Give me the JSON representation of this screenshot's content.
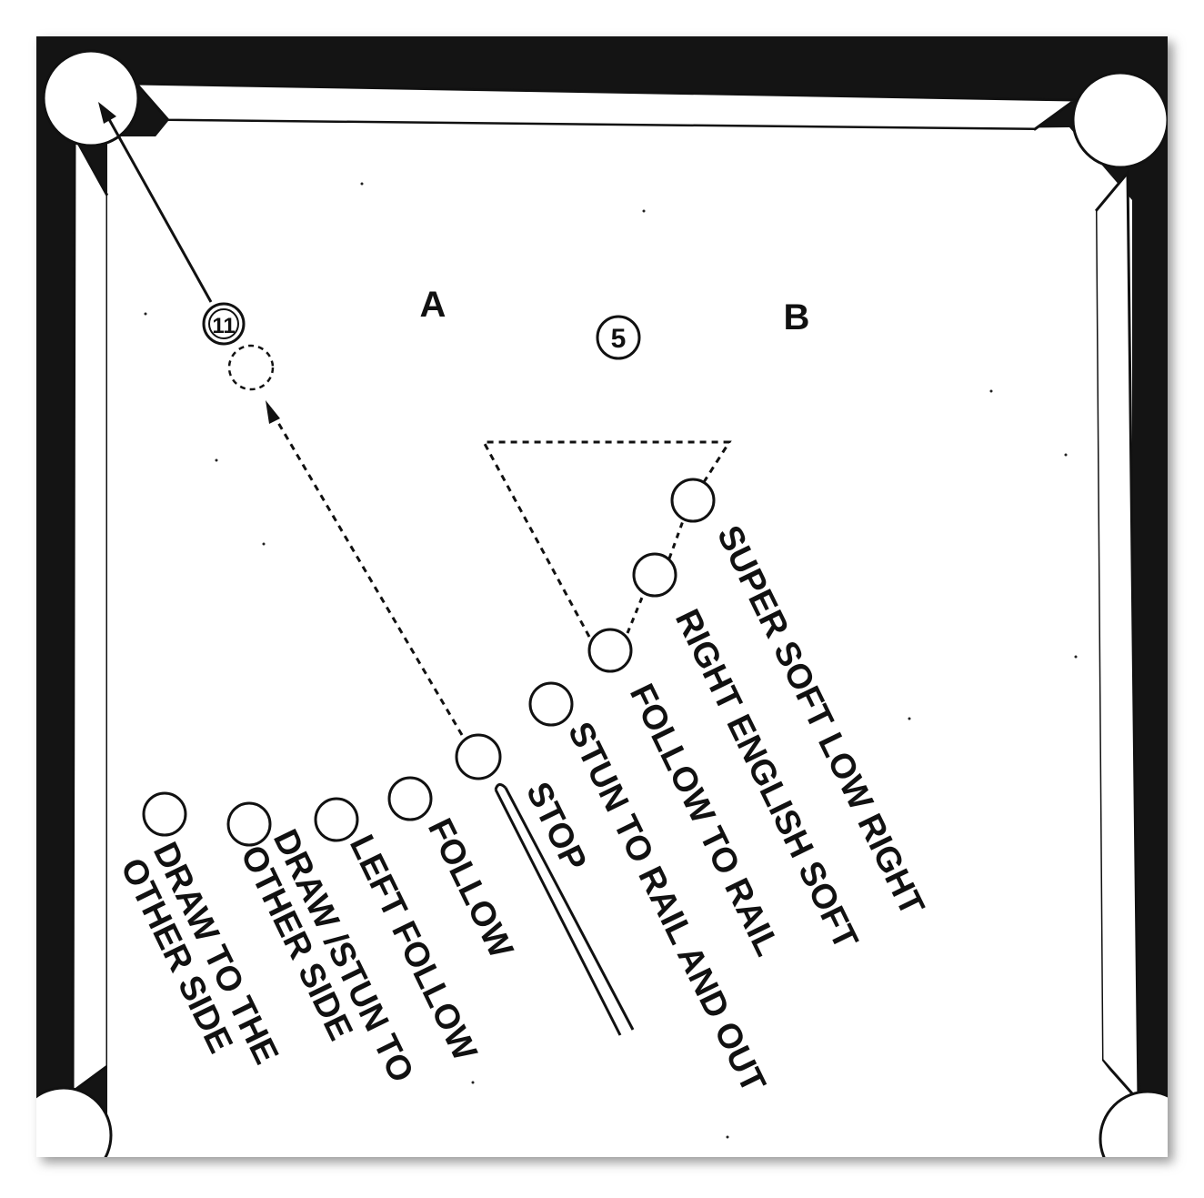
{
  "colors": {
    "rail": "#111111",
    "line": "#111111",
    "cloth": "#ffffff",
    "background": "#ffffff"
  },
  "labels": {
    "a": "A",
    "b": "B"
  },
  "balls": {
    "eleven": "11",
    "five": "5"
  },
  "cue_positions": [
    "DRAW TO THE\nOTHER SIDE",
    "DRAW /STUN TO\nOTHER SIDE",
    "LEFT FOLLOW",
    "FOLLOW",
    "STOP",
    "STUN TO RAIL AND OUT",
    "FOLLOW TO RAIL",
    "RIGHT ENGLISH SOFT",
    "SUPER SOFT LOW RIGHT"
  ]
}
